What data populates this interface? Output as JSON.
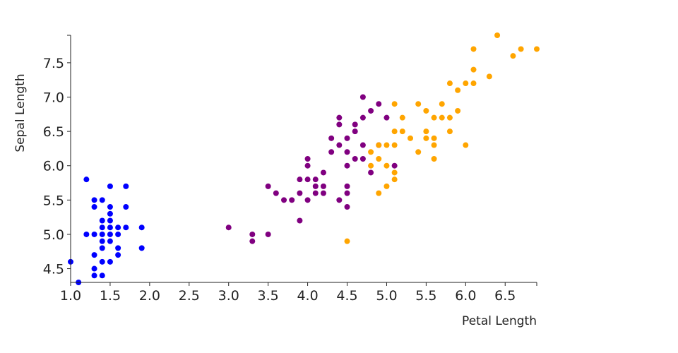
{
  "chart_data": {
    "type": "scatter",
    "xlabel": "Petal Length",
    "ylabel": "Sepal Length",
    "xlim": [
      1.0,
      6.9
    ],
    "ylim": [
      4.3,
      7.9
    ],
    "x_ticks": [
      "1.0",
      "1.5",
      "2.0",
      "2.5",
      "3.0",
      "3.5",
      "4.0",
      "4.5",
      "5.0",
      "5.5",
      "6.0",
      "6.5"
    ],
    "y_ticks": [
      "4.5",
      "5.0",
      "5.5",
      "6.0",
      "6.5",
      "7.0",
      "7.5"
    ],
    "grid": false,
    "legend": "none",
    "series": [
      {
        "color": "#0000ff",
        "points": [
          [
            1.0,
            4.6
          ],
          [
            1.1,
            4.3
          ],
          [
            1.2,
            5.8
          ],
          [
            1.2,
            5.0
          ],
          [
            1.3,
            5.5
          ],
          [
            1.3,
            5.4
          ],
          [
            1.3,
            5.0
          ],
          [
            1.3,
            4.7
          ],
          [
            1.3,
            4.5
          ],
          [
            1.3,
            4.4
          ],
          [
            1.4,
            5.5
          ],
          [
            1.4,
            5.2
          ],
          [
            1.4,
            5.1
          ],
          [
            1.4,
            5.0
          ],
          [
            1.4,
            4.9
          ],
          [
            1.4,
            4.8
          ],
          [
            1.4,
            4.6
          ],
          [
            1.4,
            4.4
          ],
          [
            1.5,
            5.7
          ],
          [
            1.5,
            5.4
          ],
          [
            1.5,
            5.3
          ],
          [
            1.5,
            5.2
          ],
          [
            1.5,
            5.1
          ],
          [
            1.5,
            5.0
          ],
          [
            1.5,
            4.9
          ],
          [
            1.5,
            4.6
          ],
          [
            1.6,
            5.1
          ],
          [
            1.6,
            5.0
          ],
          [
            1.6,
            4.8
          ],
          [
            1.6,
            4.7
          ],
          [
            1.7,
            5.7
          ],
          [
            1.7,
            5.4
          ],
          [
            1.7,
            5.1
          ],
          [
            1.9,
            5.1
          ],
          [
            1.9,
            4.8
          ]
        ]
      },
      {
        "color": "#800080",
        "points": [
          [
            3.0,
            5.1
          ],
          [
            3.3,
            5.0
          ],
          [
            3.3,
            4.9
          ],
          [
            3.5,
            5.7
          ],
          [
            3.5,
            5.0
          ],
          [
            3.6,
            5.6
          ],
          [
            3.7,
            5.5
          ],
          [
            3.8,
            5.5
          ],
          [
            3.9,
            5.8
          ],
          [
            3.9,
            5.6
          ],
          [
            3.9,
            5.2
          ],
          [
            4.0,
            6.1
          ],
          [
            4.0,
            6.0
          ],
          [
            4.0,
            5.8
          ],
          [
            4.0,
            5.5
          ],
          [
            4.1,
            5.8
          ],
          [
            4.1,
            5.7
          ],
          [
            4.1,
            5.6
          ],
          [
            4.2,
            5.9
          ],
          [
            4.2,
            5.7
          ],
          [
            4.2,
            5.6
          ],
          [
            4.3,
            6.4
          ],
          [
            4.3,
            6.2
          ],
          [
            4.4,
            6.7
          ],
          [
            4.4,
            6.6
          ],
          [
            4.4,
            6.3
          ],
          [
            4.4,
            5.5
          ],
          [
            4.5,
            6.4
          ],
          [
            4.5,
            6.2
          ],
          [
            4.5,
            6.0
          ],
          [
            4.5,
            5.7
          ],
          [
            4.5,
            5.6
          ],
          [
            4.5,
            5.4
          ],
          [
            4.6,
            6.6
          ],
          [
            4.6,
            6.5
          ],
          [
            4.6,
            6.1
          ],
          [
            4.7,
            7.0
          ],
          [
            4.7,
            6.7
          ],
          [
            4.7,
            6.3
          ],
          [
            4.7,
            6.1
          ],
          [
            4.8,
            6.8
          ],
          [
            4.8,
            5.9
          ],
          [
            4.9,
            6.9
          ],
          [
            4.9,
            6.3
          ],
          [
            5.0,
            6.7
          ],
          [
            5.1,
            6.0
          ]
        ]
      },
      {
        "color": "#ffa500",
        "points": [
          [
            4.5,
            4.9
          ],
          [
            4.8,
            6.2
          ],
          [
            4.8,
            6.0
          ],
          [
            4.9,
            6.3
          ],
          [
            4.9,
            6.1
          ],
          [
            4.9,
            5.6
          ],
          [
            5.0,
            6.3
          ],
          [
            5.0,
            6.0
          ],
          [
            5.0,
            5.7
          ],
          [
            5.1,
            6.9
          ],
          [
            5.1,
            6.5
          ],
          [
            5.1,
            6.3
          ],
          [
            5.1,
            5.9
          ],
          [
            5.1,
            5.8
          ],
          [
            5.2,
            6.7
          ],
          [
            5.2,
            6.5
          ],
          [
            5.3,
            6.4
          ],
          [
            5.4,
            6.9
          ],
          [
            5.4,
            6.2
          ],
          [
            5.5,
            6.8
          ],
          [
            5.5,
            6.5
          ],
          [
            5.5,
            6.4
          ],
          [
            5.6,
            6.7
          ],
          [
            5.6,
            6.4
          ],
          [
            5.6,
            6.3
          ],
          [
            5.6,
            6.1
          ],
          [
            5.7,
            6.9
          ],
          [
            5.7,
            6.7
          ],
          [
            5.8,
            7.2
          ],
          [
            5.8,
            6.7
          ],
          [
            5.8,
            6.5
          ],
          [
            5.9,
            7.1
          ],
          [
            5.9,
            6.8
          ],
          [
            6.0,
            7.2
          ],
          [
            6.0,
            6.3
          ],
          [
            6.1,
            7.7
          ],
          [
            6.1,
            7.4
          ],
          [
            6.1,
            7.2
          ],
          [
            6.3,
            7.3
          ],
          [
            6.4,
            7.9
          ],
          [
            6.6,
            7.6
          ],
          [
            6.7,
            7.7
          ],
          [
            6.9,
            7.7
          ]
        ]
      }
    ]
  }
}
